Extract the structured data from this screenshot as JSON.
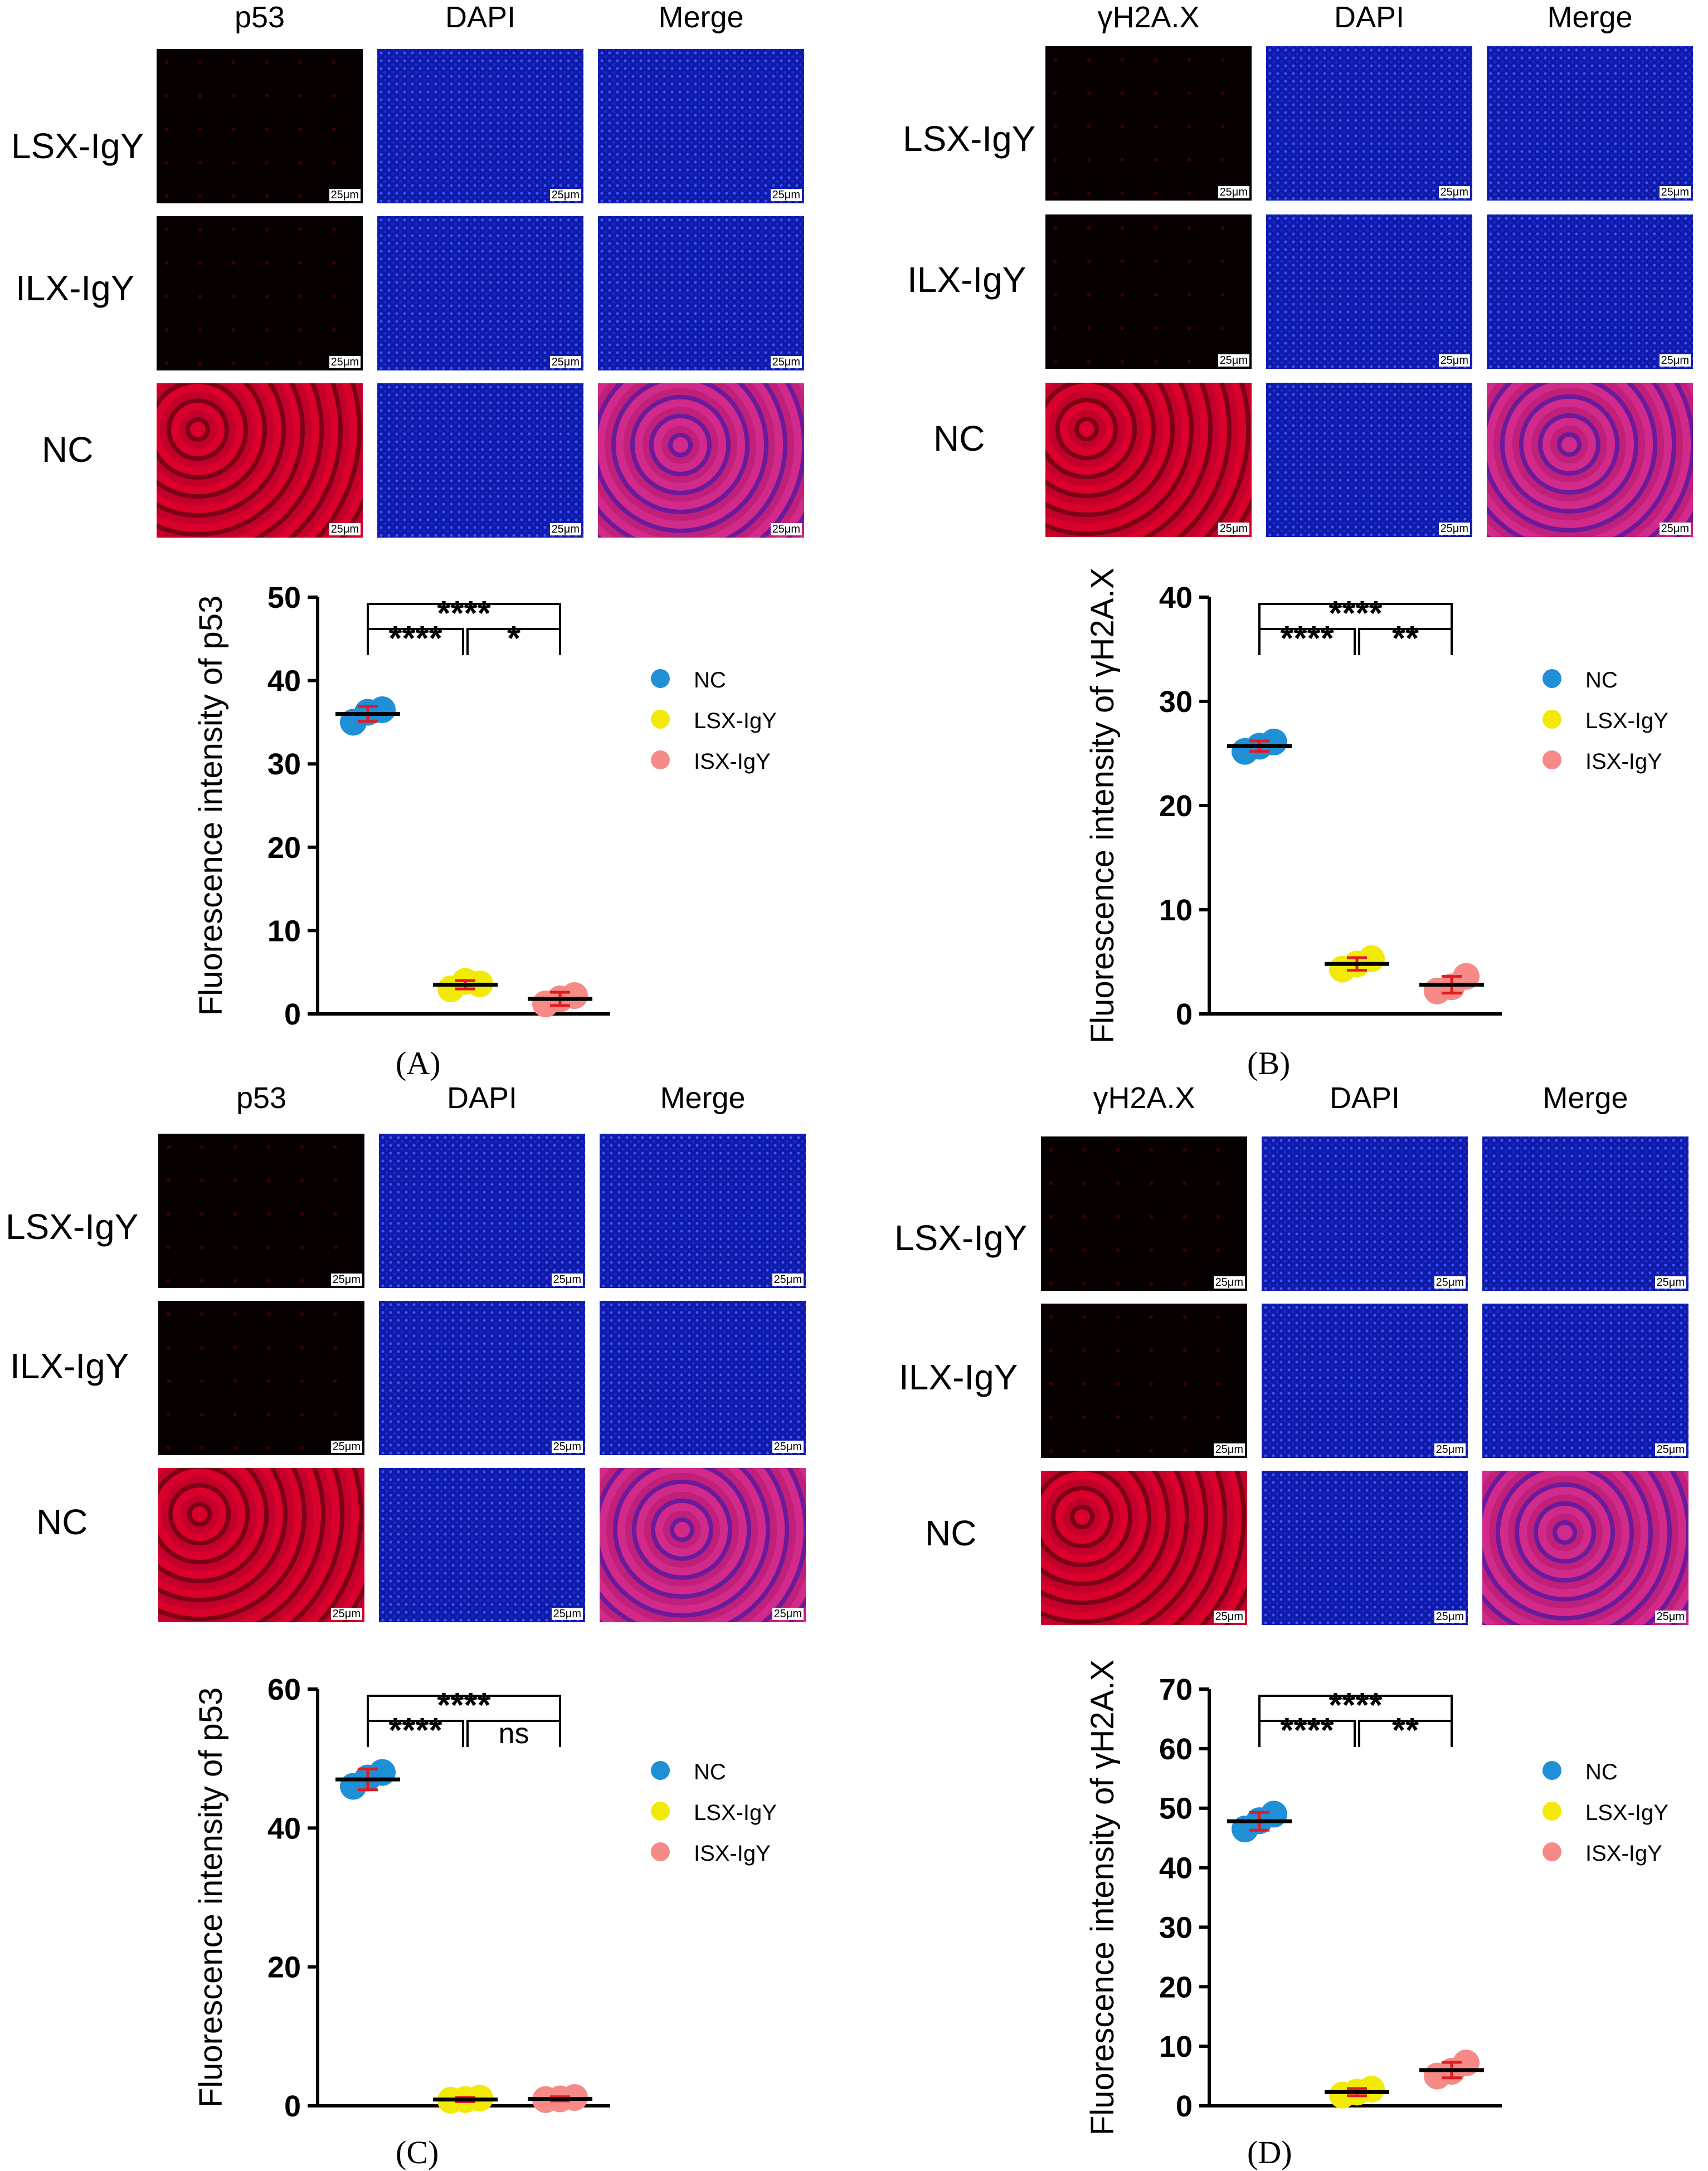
{
  "panels": [
    {
      "letter": "(A)",
      "col_heads": [
        "p53",
        "DAPI",
        "Merge"
      ],
      "rows": [
        "LSX-IgY",
        "ILX-IgY",
        "NC"
      ],
      "scale_bar": "25μm"
    },
    {
      "letter": "(B)",
      "col_heads": [
        "γH2A.X",
        "DAPI",
        "Merge"
      ],
      "rows": [
        "LSX-IgY",
        "ILX-IgY",
        "NC"
      ],
      "scale_bar": "25μm"
    },
    {
      "letter": "(C)",
      "col_heads": [
        "p53",
        "DAPI",
        "Merge"
      ],
      "rows": [
        "LSX-IgY",
        "ILX-IgY",
        "NC"
      ],
      "scale_bar": "25μm"
    },
    {
      "letter": "(D)",
      "col_heads": [
        "γH2A.X",
        "DAPI",
        "Merge"
      ],
      "rows": [
        "LSX-IgY",
        "ILX-IgY",
        "NC"
      ],
      "scale_bar": "25μm"
    }
  ],
  "colors": {
    "NC": "#1f8fd6",
    "LSX-IgY": "#f2ea06",
    "ISX-IgY": "#f58a86",
    "error": "#e01b24"
  },
  "chart_data": [
    {
      "type": "scatter",
      "ylabel": "Fluorescence intensity of p53",
      "ylim": [
        0,
        50
      ],
      "yticks": [
        0,
        10,
        20,
        30,
        40,
        50
      ],
      "legend": [
        "NC",
        "LSX-IgY",
        "ISX-IgY"
      ],
      "groups": [
        {
          "name": "NC",
          "mean": 36,
          "sd": 0.9,
          "points": [
            35.0,
            36.5,
            36.2
          ]
        },
        {
          "name": "LSX-IgY",
          "mean": 3.5,
          "sd": 0.5,
          "points": [
            3.0,
            3.6,
            3.9
          ]
        },
        {
          "name": "ISX-IgY",
          "mean": 1.8,
          "sd": 0.8,
          "points": [
            1.2,
            2.2,
            1.8
          ]
        }
      ],
      "brackets": [
        {
          "from": 0,
          "to": 2,
          "label": "****",
          "level": 2
        },
        {
          "from": 0,
          "to": 1,
          "label": "****",
          "level": 1
        },
        {
          "from": 1,
          "to": 2,
          "label": "*",
          "level": 1
        }
      ]
    },
    {
      "type": "scatter",
      "ylabel": "Fluorescence intensity of γH2A.X",
      "ylim": [
        0,
        40
      ],
      "yticks": [
        0,
        10,
        20,
        30,
        40
      ],
      "legend": [
        "NC",
        "LSX-IgY",
        "ISX-IgY"
      ],
      "groups": [
        {
          "name": "NC",
          "mean": 25.7,
          "sd": 0.5,
          "points": [
            25.2,
            26.1,
            25.7
          ]
        },
        {
          "name": "LSX-IgY",
          "mean": 4.8,
          "sd": 0.6,
          "points": [
            4.3,
            5.3,
            4.8
          ]
        },
        {
          "name": "ISX-IgY",
          "mean": 2.8,
          "sd": 0.8,
          "points": [
            2.2,
            3.6,
            2.6
          ]
        }
      ],
      "brackets": [
        {
          "from": 0,
          "to": 2,
          "label": "****",
          "level": 2
        },
        {
          "from": 0,
          "to": 1,
          "label": "****",
          "level": 1
        },
        {
          "from": 1,
          "to": 2,
          "label": "**",
          "level": 1
        }
      ]
    },
    {
      "type": "scatter",
      "ylabel": "Fluorescence intensity of p53",
      "ylim": [
        0,
        60
      ],
      "yticks": [
        0,
        20,
        40,
        60
      ],
      "legend": [
        "NC",
        "LSX-IgY",
        "ISX-IgY"
      ],
      "groups": [
        {
          "name": "NC",
          "mean": 47,
          "sd": 1.5,
          "points": [
            46.0,
            48.0,
            47.2
          ]
        },
        {
          "name": "LSX-IgY",
          "mean": 0.9,
          "sd": 0.3,
          "points": [
            0.8,
            1.1,
            0.9
          ]
        },
        {
          "name": "ISX-IgY",
          "mean": 1.0,
          "sd": 0.3,
          "points": [
            0.9,
            1.2,
            1.0
          ]
        }
      ],
      "brackets": [
        {
          "from": 0,
          "to": 2,
          "label": "****",
          "level": 2
        },
        {
          "from": 0,
          "to": 1,
          "label": "****",
          "level": 1
        },
        {
          "from": 1,
          "to": 2,
          "label": "ns",
          "level": 1
        }
      ]
    },
    {
      "type": "scatter",
      "ylabel": "Fluorescence intensity of γH2A.X",
      "ylim": [
        0,
        70
      ],
      "yticks": [
        0,
        10,
        20,
        30,
        40,
        50,
        60,
        70
      ],
      "legend": [
        "NC",
        "LSX-IgY",
        "ISX-IgY"
      ],
      "groups": [
        {
          "name": "NC",
          "mean": 47.8,
          "sd": 1.5,
          "points": [
            46.5,
            49.0,
            47.9
          ]
        },
        {
          "name": "LSX-IgY",
          "mean": 2.3,
          "sd": 0.6,
          "points": [
            1.8,
            2.8,
            2.3
          ]
        },
        {
          "name": "ISX-IgY",
          "mean": 6.0,
          "sd": 1.3,
          "points": [
            5.0,
            7.2,
            5.8
          ]
        }
      ],
      "brackets": [
        {
          "from": 0,
          "to": 2,
          "label": "****",
          "level": 2
        },
        {
          "from": 0,
          "to": 1,
          "label": "****",
          "level": 1
        },
        {
          "from": 1,
          "to": 2,
          "label": "**",
          "level": 1
        }
      ]
    }
  ]
}
